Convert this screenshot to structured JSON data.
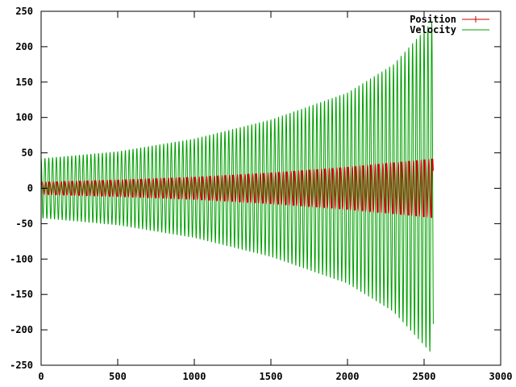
{
  "chart_data": {
    "type": "line",
    "title": "",
    "xlabel": "",
    "ylabel": "",
    "xlim": [
      0,
      3000
    ],
    "ylim": [
      -250,
      250
    ],
    "x_ticks": [
      0,
      500,
      1000,
      1500,
      2000,
      2500,
      3000
    ],
    "y_ticks": [
      250,
      200,
      150,
      100,
      50,
      0,
      -50,
      -100,
      -150,
      -200,
      -250
    ],
    "x_tick_labels": [
      "0",
      "500",
      "1000",
      "1500",
      "2000",
      "2500",
      "3000"
    ],
    "y_tick_labels": [
      "250",
      "200",
      "150",
      "100",
      "50",
      "0",
      "-50",
      "-100",
      "-150",
      "-200",
      "-250"
    ],
    "grid": false,
    "legend_position": "top-right",
    "series": [
      {
        "name": "Position",
        "color": "#cc0000",
        "style": "line-with-errorbar-marks",
        "x_range": [
          0,
          2560
        ],
        "period": 25,
        "envelope": {
          "x": [
            0,
            500,
            1000,
            1500,
            2000,
            2560
          ],
          "y": [
            9,
            12,
            16,
            22,
            30,
            42
          ]
        }
      },
      {
        "name": "Velocity",
        "color": "#00a000",
        "style": "line",
        "x_range": [
          0,
          2560
        ],
        "period": 25,
        "envelope": {
          "x": [
            0,
            500,
            1000,
            1500,
            2000,
            2300,
            2560
          ],
          "y": [
            42,
            52,
            70,
            97,
            135,
            175,
            237
          ]
        }
      }
    ]
  }
}
